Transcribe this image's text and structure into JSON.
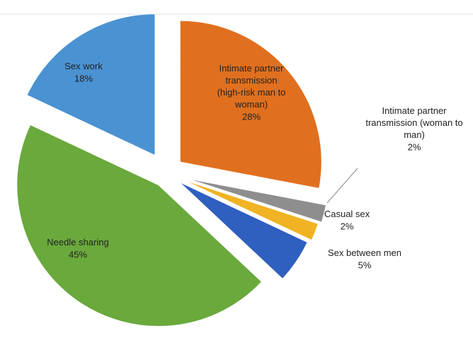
{
  "chart_data": {
    "type": "pie",
    "categories": [
      "Intimate partner transmission (high-risk man to woman)",
      "Intimate partner transmission (woman to man)",
      "Casual sex",
      "Sex between men",
      "Needle sharing",
      "Sex work"
    ],
    "values": [
      28,
      2,
      2,
      5,
      45,
      18
    ],
    "value_labels": [
      "28%",
      "2%",
      "2%",
      "5%",
      "45%",
      "18%"
    ],
    "colors": [
      "#e0701f",
      "#8e8e8e",
      "#f0b323",
      "#2f5fbf",
      "#6aa93c",
      "#4a92d2"
    ]
  }
}
